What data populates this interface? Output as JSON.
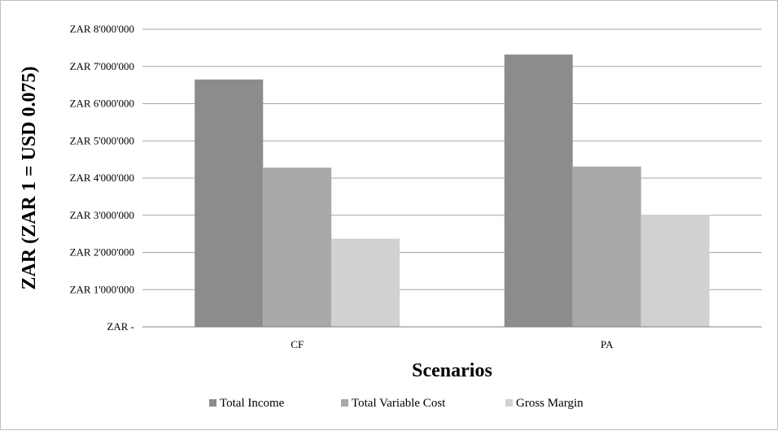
{
  "chart_data": {
    "type": "bar",
    "title": "",
    "xlabel": "Scenarios",
    "ylabel": "ZAR (ZAR 1 = USD 0.075)",
    "categories": [
      "CF",
      "PA"
    ],
    "series": [
      {
        "name": "Total Income",
        "values": [
          6650000,
          7320000
        ],
        "color": "#8c8c8f"
      },
      {
        "name": "Total Variable Cost",
        "values": [
          4280000,
          4310000
        ],
        "color": "#a9a9ac"
      },
      {
        "name": "Gross Margin",
        "values": [
          2370000,
          3010000
        ],
        "color": "#d1d1d3"
      }
    ],
    "ylim": [
      0,
      8000000
    ],
    "yticks": [
      0,
      1000000,
      2000000,
      3000000,
      4000000,
      5000000,
      6000000,
      7000000,
      8000000
    ],
    "ytick_labels": [
      "ZAR -",
      "ZAR 1'000'000",
      "ZAR 2'000'000",
      "ZAR 3'000'000",
      "ZAR 4'000'000",
      "ZAR 5'000'000",
      "ZAR 6'000'000",
      "ZAR 7'000'000",
      "ZAR 8'000'000"
    ],
    "grid": true,
    "legend_position": "bottom"
  }
}
